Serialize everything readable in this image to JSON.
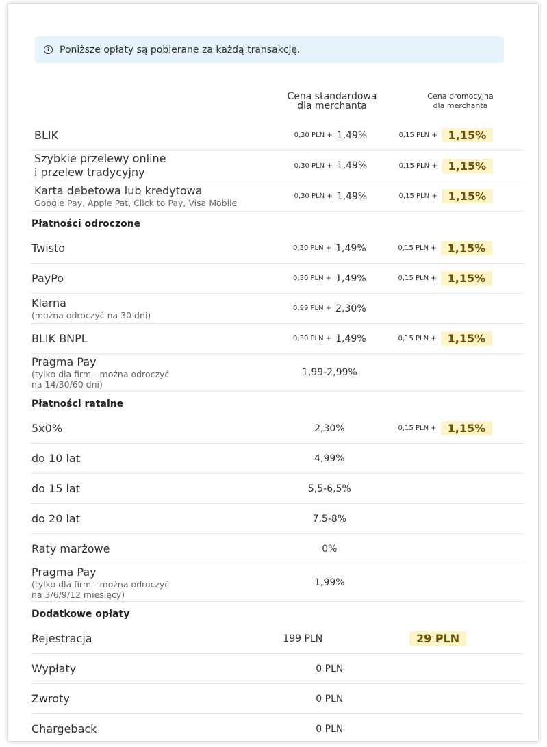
{
  "notice": "Poniższe opłaty są pobierane za każdą transakcję.",
  "columns": [
    [
      "Cena standardowa",
      "dla merchanta"
    ],
    [
      "Cena promocyjna",
      "dla merchanta"
    ]
  ],
  "groups": [
    {
      "rows": [
        {
          "name": [
            "BLIK"
          ],
          "standard": {
            "fee": "0,30 PLN +",
            "rate": "1,49%"
          },
          "promo": {
            "fee": "0,15 PLN +",
            "rate": "1,15%"
          }
        },
        {
          "name": [
            "Szybkie przelewy online",
            "i przelew tradycyjny"
          ],
          "standard": {
            "fee": "0,30 PLN +",
            "rate": "1,49%"
          },
          "promo": {
            "fee": "0,15 PLN +",
            "rate": "1,15%"
          }
        },
        {
          "name": [
            "Karta debetowa lub kredytowa"
          ],
          "sub": [
            "Google Pay, Apple Pat, Click to Pay, Visa Mobile"
          ],
          "standard": {
            "fee": "0,30 PLN +",
            "rate": "1,49%"
          },
          "promo": {
            "fee": "0,15 PLN +",
            "rate": "1,15%"
          }
        }
      ]
    },
    {
      "title": "Płatności odroczone",
      "rows": [
        {
          "name": [
            "Twisto"
          ],
          "standard": {
            "fee": "0,30 PLN +",
            "rate": "1,49%"
          },
          "promo": {
            "fee": "0,15 PLN +",
            "rate": "1,15%"
          }
        },
        {
          "name": [
            "PayPo"
          ],
          "standard": {
            "fee": "0,30 PLN +",
            "rate": "1,49%"
          },
          "promo": {
            "fee": "0,15 PLN +",
            "rate": "1,15%"
          }
        },
        {
          "name": [
            "Klarna"
          ],
          "sub": [
            "(można odroczyć na 30 dni)"
          ],
          "standard": {
            "fee": "0,99 PLN +",
            "rate": "2,30%"
          }
        },
        {
          "name": [
            "BLIK BNPL"
          ],
          "standard": {
            "fee": "0,30 PLN +",
            "rate": "1,49%"
          },
          "promo": {
            "fee": "0,15 PLN +",
            "rate": "1,15%"
          }
        },
        {
          "name": [
            "Pragma Pay"
          ],
          "sub": [
            "(tylko dla firm - można odroczyć",
            "na 14/30/60 dni)"
          ],
          "standard": {
            "rate": "1,99-2,99%"
          }
        }
      ]
    },
    {
      "title": "Płatności ratalne",
      "rows": [
        {
          "name": [
            "5x0%"
          ],
          "standard": {
            "rate": "2,30%"
          },
          "promo": {
            "fee": "0,15 PLN +",
            "rate": "1,15%"
          }
        },
        {
          "name": [
            "do 10 lat"
          ],
          "standard": {
            "rate": "4,99%"
          }
        },
        {
          "name": [
            "do 15 lat"
          ],
          "standard": {
            "rate": "5,5-6,5%"
          }
        },
        {
          "name": [
            "do 20 lat"
          ],
          "standard": {
            "rate": "7,5-8%"
          }
        },
        {
          "name": [
            "Raty marżowe"
          ],
          "standard": {
            "rate": "0%"
          }
        },
        {
          "name": [
            "Pragma Pay"
          ],
          "sub": [
            "(tylko dla firm - można odroczyć",
            "na 3/6/9/12 miesięcy)"
          ],
          "standard": {
            "rate": "1,99%"
          }
        }
      ]
    },
    {
      "title": "Dodatkowe opłaty",
      "rows": [
        {
          "name": [
            "Rejestracja"
          ],
          "standard": {
            "rate": "199 PLN"
          },
          "promo": {
            "rate": "29 PLN"
          }
        },
        {
          "name": [
            "Wypłaty"
          ],
          "standard": {
            "rate": "0 PLN"
          }
        },
        {
          "name": [
            "Zwroty"
          ],
          "standard": {
            "rate": "0 PLN"
          }
        },
        {
          "name": [
            "Chargeback"
          ],
          "standard": {
            "rate": "0 PLN"
          }
        }
      ]
    }
  ]
}
